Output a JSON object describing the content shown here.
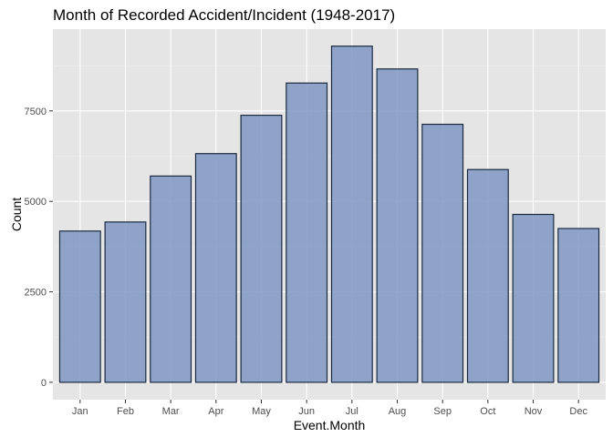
{
  "chart_data": {
    "type": "bar",
    "title": "Month of Recorded Accident/Incident (1948-2017)",
    "xlabel": "Event.Month",
    "ylabel": "Count",
    "categories": [
      "Jan",
      "Feb",
      "Mar",
      "Apr",
      "May",
      "Jun",
      "Jul",
      "Aug",
      "Sep",
      "Oct",
      "Nov",
      "Dec"
    ],
    "values": [
      4180,
      4430,
      5700,
      6320,
      7380,
      8270,
      9290,
      8660,
      7130,
      5880,
      4640,
      4250
    ],
    "y_ticks": [
      0,
      2500,
      5000,
      7500
    ],
    "y_tick_labels": [
      "0",
      "2500",
      "5000",
      "7500"
    ],
    "ylim": [
      -480,
      9760
    ],
    "grid": true,
    "colors": {
      "panel_bg": "#e5e5e5",
      "grid_major": "#ffffff",
      "bar_fill": "#7f98c2",
      "bar_stroke": "#1b2a41",
      "text": "#000000",
      "tick_text": "#4d4d4d",
      "tick_mark": "#333333"
    }
  }
}
